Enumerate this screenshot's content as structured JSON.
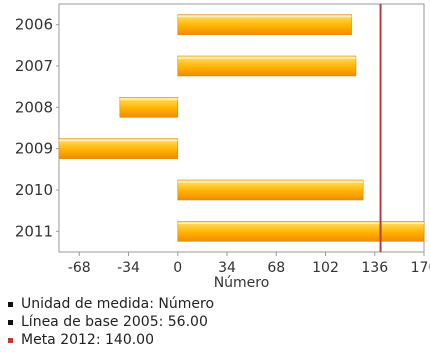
{
  "chart_data": {
    "type": "bar",
    "orientation": "horizontal",
    "categories": [
      "2006",
      "2007",
      "2008",
      "2009",
      "2010",
      "2011"
    ],
    "values": [
      120,
      123,
      -40,
      -82,
      128,
      170
    ],
    "xlabel": "Número",
    "ylabel": "",
    "xlim": [
      -82,
      170
    ],
    "xticks": [
      "-68",
      "-34",
      "0",
      "34",
      "68",
      "102",
      "136",
      "170"
    ],
    "xtick_values": [
      -68,
      -34,
      0,
      34,
      68,
      102,
      136,
      170
    ],
    "grid": false,
    "target_line": {
      "value": 140,
      "color": "#b0413e"
    },
    "bar_colors": {
      "top": "#ffd24a",
      "middle": "#ffb300",
      "bottom": "#f08c00",
      "highlight": "#ffe8a0"
    }
  },
  "legend": {
    "items": [
      {
        "text": "Unidad de medida: Número",
        "color": "#111111"
      },
      {
        "text": "Línea de base 2005: 56.00",
        "color": "#111111"
      },
      {
        "text": "Meta 2012: 140.00",
        "color": "#c0392b"
      }
    ]
  }
}
